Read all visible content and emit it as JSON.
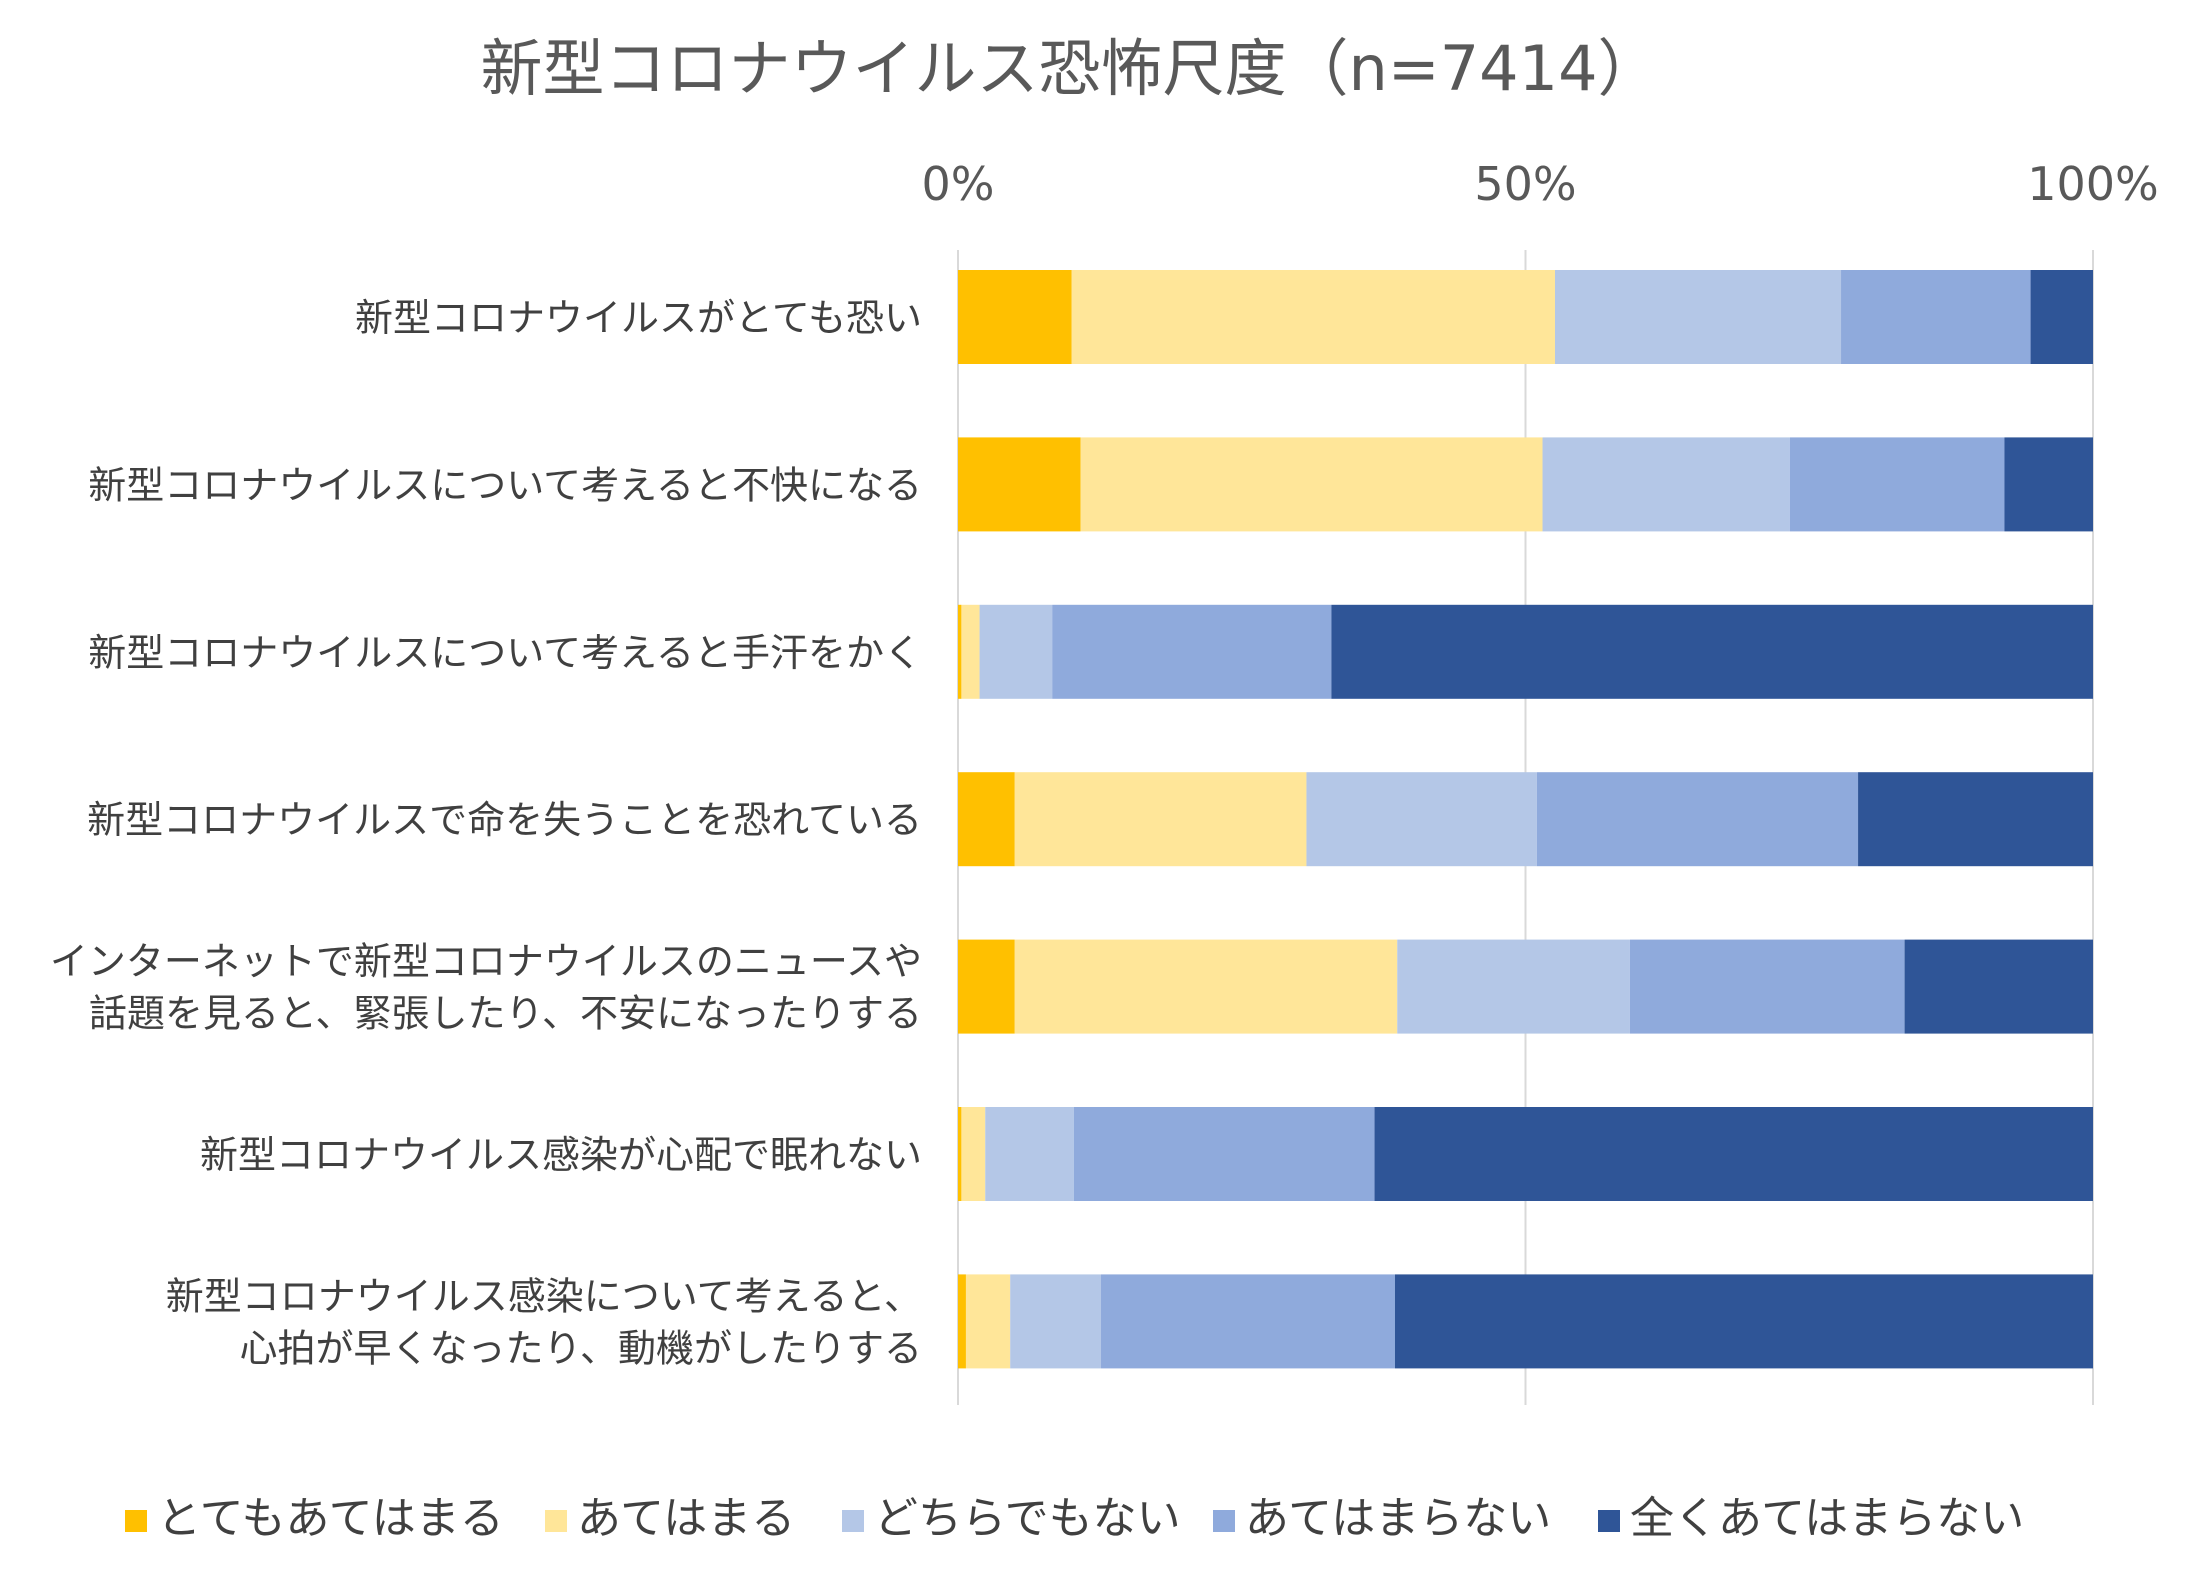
{
  "chart_data": {
    "type": "bar",
    "orientation": "horizontal",
    "stacked": "percent",
    "title": "新型コロナウイルス恐怖尺度（n=7414）",
    "xlim": [
      0,
      100
    ],
    "x_ticks": [
      "0%",
      "50%",
      "100%"
    ],
    "x_tick_values": [
      0,
      50,
      100
    ],
    "grid": true,
    "legend_position": "bottom",
    "categories": [
      [
        "新型コロナウイルスがとても恐い"
      ],
      [
        "新型コロナウイルスについて考えると不快になる"
      ],
      [
        "新型コロナウイルスについて考えると手汗をかく"
      ],
      [
        "新型コロナウイルスで命を失うことを恐れている"
      ],
      [
        "インターネットで新型コロナウイルスのニュースや",
        "話題を見ると、緊張したり、不安になったりする"
      ],
      [
        "新型コロナウイルス感染が心配で眠れない"
      ],
      [
        "新型コロナウイルス感染について考えると、",
        "心拍が早くなったり、動機がしたりする"
      ]
    ],
    "series": [
      {
        "name": "とてもあてはまる",
        "color": "#FFC000",
        "values": [
          10.0,
          10.8,
          0.3,
          5.0,
          5.0,
          0.3,
          0.7
        ]
      },
      {
        "name": "あてはまる",
        "color": "#FFE699",
        "values": [
          42.6,
          40.7,
          1.6,
          25.7,
          33.7,
          2.1,
          3.9
        ]
      },
      {
        "name": "どちらでもない",
        "color": "#B4C7E7",
        "values": [
          25.2,
          21.8,
          6.4,
          20.3,
          20.5,
          7.8,
          8.0
        ]
      },
      {
        "name": "あてはまらない",
        "color": "#8FAADC",
        "values": [
          16.7,
          18.9,
          24.6,
          28.3,
          24.2,
          26.5,
          25.9
        ]
      },
      {
        "name": "全くあてはまらない",
        "color": "#2F5597",
        "values": [
          5.5,
          7.8,
          67.1,
          20.7,
          16.6,
          63.3,
          61.5
        ]
      }
    ]
  }
}
